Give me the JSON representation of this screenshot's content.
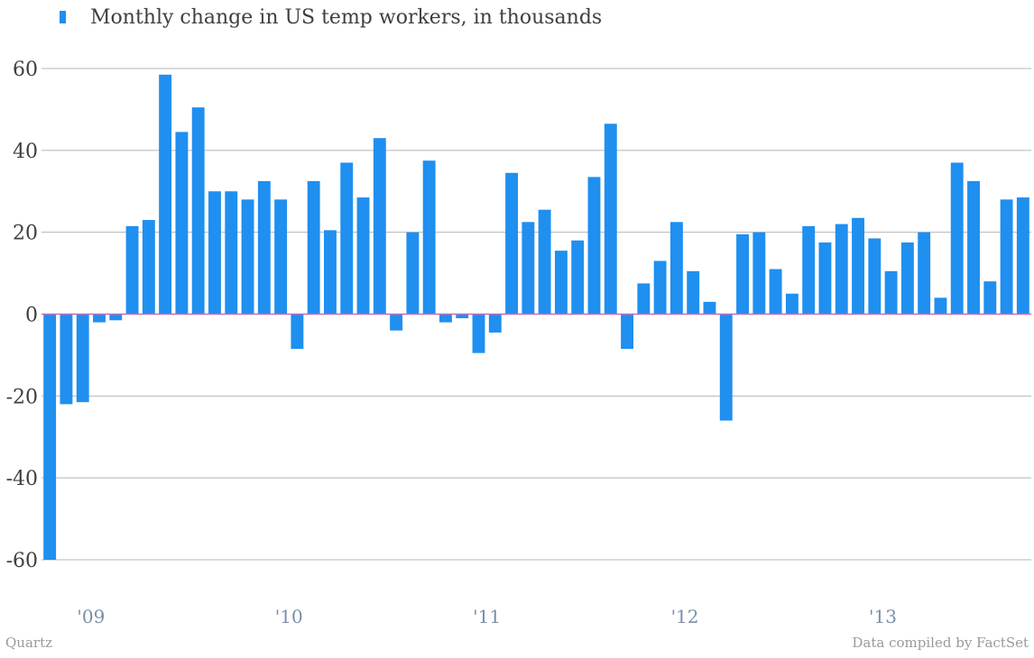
{
  "legend": {
    "label": "Monthly change in US temp workers, in thousands"
  },
  "footer": {
    "source_left": "Quartz",
    "source_right": "Data compiled by FactSet"
  },
  "colors": {
    "bar": "#1f8ff0",
    "zero_line": "#c86ab8",
    "grid": "#b5b5b5"
  },
  "chart_data": {
    "type": "bar",
    "title": "",
    "xlabel": "",
    "ylabel": "",
    "ylim": [
      -70,
      65
    ],
    "yticks": [
      60,
      40,
      20,
      0,
      -20,
      -40,
      -60
    ],
    "ytick_labels": [
      "60",
      "40",
      "20",
      "0",
      "-20",
      "-40",
      "-60"
    ],
    "x_tick_labels": [
      {
        "label": "'09",
        "index": 2.5
      },
      {
        "label": "'10",
        "index": 14.5
      },
      {
        "label": "'11",
        "index": 26.5
      },
      {
        "label": "'12",
        "index": 38.5
      },
      {
        "label": "'13",
        "index": 50.5
      }
    ],
    "grid": true,
    "series": [
      {
        "values": [
          -60,
          -22,
          -21.5,
          -2,
          -1.5,
          21.5,
          23,
          58.5,
          44.5,
          50.5,
          30,
          30,
          28,
          32.5,
          28,
          -8.5,
          32.5,
          20.5,
          37,
          28.5,
          43,
          -4,
          20,
          37.5,
          -2,
          -1,
          -9.5,
          -4.5,
          34.5,
          22.5,
          25.5,
          15.5,
          18,
          33.5,
          46.5,
          -8.5,
          7.5,
          13,
          22.5,
          10.5,
          3,
          -26,
          19.5,
          20,
          11,
          5,
          21.5,
          17.5,
          22,
          23.5,
          18.5,
          10.5,
          17.5,
          20,
          4,
          37,
          32.5,
          8,
          28,
          28.5
        ]
      }
    ]
  }
}
